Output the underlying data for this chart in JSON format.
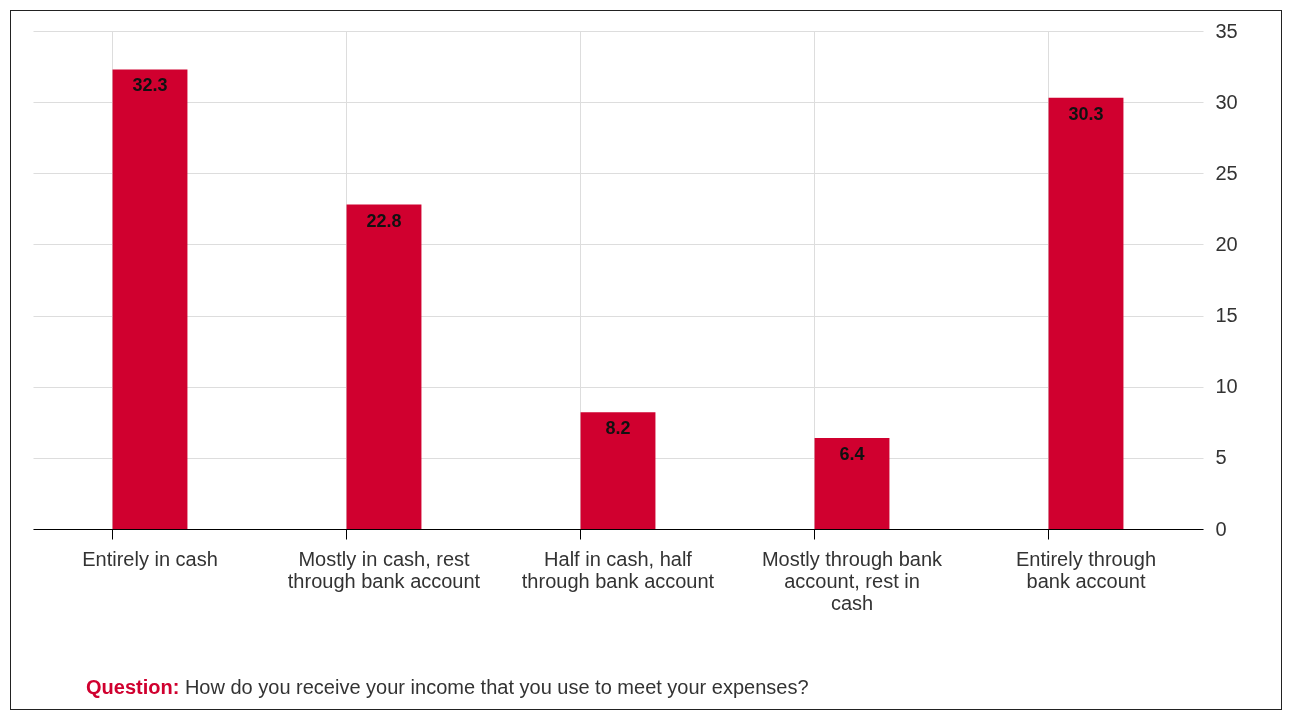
{
  "chart_data": {
    "type": "bar",
    "categories": [
      "Entirely in cash",
      "Mostly in cash, rest through bank account",
      "Half in cash, half through bank account",
      "Mostly through bank account, rest in cash",
      "Entirely through bank account"
    ],
    "values": [
      32.3,
      22.8,
      8.2,
      6.4,
      30.3
    ],
    "color": "#d0002f",
    "ylim": [
      0,
      35
    ],
    "yticks": [
      0,
      5,
      10,
      15,
      20,
      25,
      30,
      35
    ],
    "grid": true,
    "data_labels": true,
    "annotations": [
      "Question: How do you receive your income that you use to meet your expenses?"
    ]
  }
}
